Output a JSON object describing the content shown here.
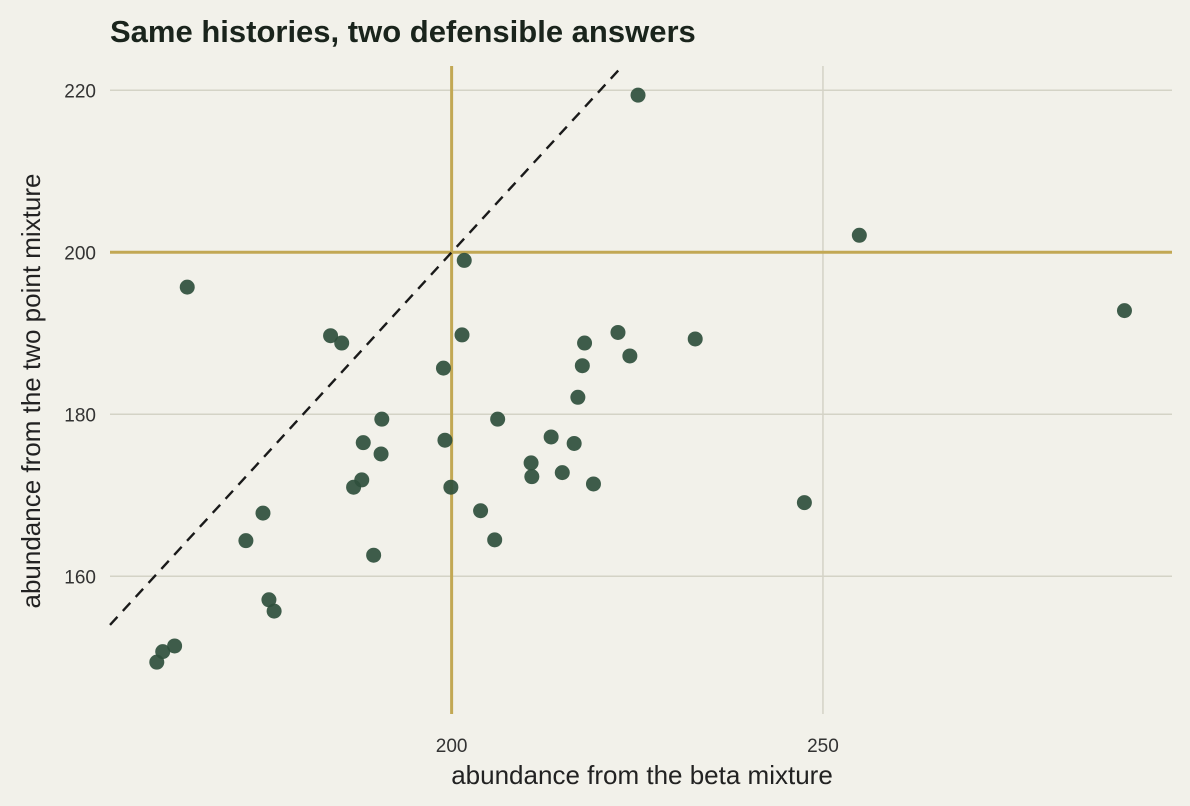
{
  "chart_data": {
    "type": "scatter",
    "title": "Same histories, two defensible answers",
    "xlabel": "abundance from the beta mixture",
    "ylabel": "abundance from the two point mixture",
    "xlim": [
      154,
      297
    ],
    "ylim": [
      143,
      223
    ],
    "xticks": [
      200,
      250
    ],
    "yticks": [
      160,
      180,
      200,
      220
    ],
    "grid": true,
    "reference_lines": {
      "vertical_x": 200,
      "horizontal_y": 200,
      "identity_diagonal": true
    },
    "colors": {
      "points": "#2f4f3c",
      "reference": "#c2a854",
      "grid": "#d4d3c6",
      "background": "#f2f1ea",
      "diagonal": "#1a1a1a"
    },
    "points": [
      {
        "x": 160.3,
        "y": 149.4
      },
      {
        "x": 161.1,
        "y": 150.7
      },
      {
        "x": 162.7,
        "y": 151.4
      },
      {
        "x": 164.4,
        "y": 195.7
      },
      {
        "x": 172.3,
        "y": 164.4
      },
      {
        "x": 174.6,
        "y": 167.8
      },
      {
        "x": 175.4,
        "y": 157.1
      },
      {
        "x": 176.1,
        "y": 155.7
      },
      {
        "x": 183.7,
        "y": 189.7
      },
      {
        "x": 185.2,
        "y": 188.8
      },
      {
        "x": 186.8,
        "y": 171.0
      },
      {
        "x": 187.9,
        "y": 171.9
      },
      {
        "x": 188.1,
        "y": 176.5
      },
      {
        "x": 189.5,
        "y": 162.6
      },
      {
        "x": 190.5,
        "y": 175.1
      },
      {
        "x": 190.6,
        "y": 179.4
      },
      {
        "x": 198.9,
        "y": 185.7
      },
      {
        "x": 199.1,
        "y": 176.8
      },
      {
        "x": 199.9,
        "y": 171.0
      },
      {
        "x": 201.4,
        "y": 189.8
      },
      {
        "x": 201.7,
        "y": 199.0
      },
      {
        "x": 203.9,
        "y": 168.1
      },
      {
        "x": 205.8,
        "y": 164.5
      },
      {
        "x": 206.2,
        "y": 179.4
      },
      {
        "x": 210.7,
        "y": 174.0
      },
      {
        "x": 210.8,
        "y": 172.3
      },
      {
        "x": 213.4,
        "y": 177.2
      },
      {
        "x": 214.9,
        "y": 172.8
      },
      {
        "x": 216.5,
        "y": 176.4
      },
      {
        "x": 217.0,
        "y": 182.1
      },
      {
        "x": 217.6,
        "y": 186.0
      },
      {
        "x": 217.9,
        "y": 188.8
      },
      {
        "x": 219.1,
        "y": 171.4
      },
      {
        "x": 222.4,
        "y": 190.1
      },
      {
        "x": 224.0,
        "y": 187.2
      },
      {
        "x": 225.1,
        "y": 219.4
      },
      {
        "x": 232.8,
        "y": 189.3
      },
      {
        "x": 247.5,
        "y": 169.1
      },
      {
        "x": 254.9,
        "y": 202.1
      },
      {
        "x": 290.6,
        "y": 192.8
      }
    ]
  }
}
